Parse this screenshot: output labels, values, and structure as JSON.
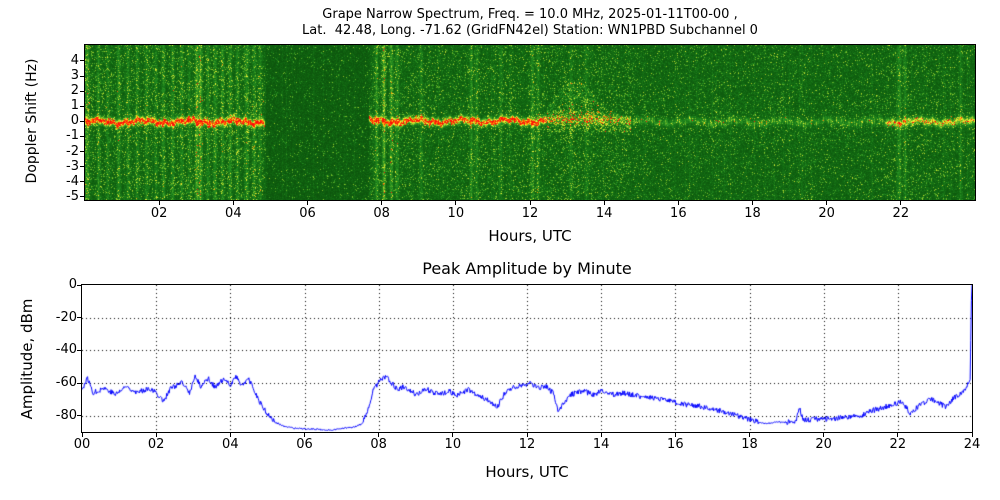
{
  "spectrogram": {
    "title_line1": "Grape Narrow Spectrum, Freq. = 10.0 MHz, 2025-01-11T00-00 ,",
    "title_line2": "Lat.  42.48, Long. -71.62 (GridFN42el) Station: WN1PBD Subchannel 0",
    "ylabel": "Doppler Shift (Hz)",
    "xlabel": "Hours, UTC",
    "ytick_labels": [
      "4",
      "3",
      "2",
      "1",
      "0",
      "-1",
      "-2",
      "-3",
      "-4",
      "-5"
    ],
    "xtick_labels": [
      "02",
      "04",
      "06",
      "08",
      "10",
      "12",
      "14",
      "16",
      "18",
      "20",
      "22"
    ]
  },
  "amplitude": {
    "title": "Peak Amplitude by Minute",
    "ylabel": "Amplitude, dBm",
    "xlabel": "Hours, UTC",
    "ytick_labels": [
      "0",
      "-20",
      "-40",
      "-60",
      "-80"
    ],
    "xtick_labels": [
      "00",
      "02",
      "04",
      "06",
      "08",
      "10",
      "12",
      "14",
      "16",
      "18",
      "20",
      "22",
      "24"
    ]
  },
  "chart_data": [
    {
      "type": "heatmap",
      "title": "Grape Narrow Spectrum, Freq. = 10.0 MHz, 2025-01-11T00-00 , Lat. 42.48, Long. -71.62 (GridFN42el) Station: WN1PBD Subchannel 0",
      "xlabel": "Hours, UTC",
      "ylabel": "Doppler Shift (Hz)",
      "xlim": [
        0,
        24
      ],
      "ylim": [
        -5.2,
        5.05
      ],
      "xticks": [
        2,
        4,
        6,
        8,
        10,
        12,
        14,
        16,
        18,
        20,
        22
      ],
      "yticks": [
        4,
        3,
        2,
        1,
        0,
        -1,
        -2,
        -3,
        -4,
        -5
      ],
      "colormap": {
        "background": "#126612",
        "low": "#2e9e2e",
        "mid": "#b8d832",
        "high": "#ffff00",
        "peak": "#ff0000"
      },
      "features": {
        "carrier_segments": [
          {
            "start": 0.0,
            "end": 4.85,
            "center": 0.0,
            "amp": 1.0,
            "red": true
          },
          {
            "start": 7.65,
            "end": 12.45,
            "center": 0.05,
            "amp": 1.0,
            "red": true
          },
          {
            "start": 14.6,
            "end": 21.6,
            "center": 0.0,
            "amp": 0.45,
            "red": false
          },
          {
            "start": 21.6,
            "end": 24.0,
            "center": 0.0,
            "amp": 0.7,
            "red": false
          }
        ],
        "quiet_gap_hours": [
          4.85,
          7.65
        ],
        "spread_event": {
          "start": 12.45,
          "end": 14.7,
          "peak_hour": 13.2,
          "max_up_hz": 2.4,
          "down_hz": 2.5
        },
        "vertical_noise_bands": [
          {
            "h": 0.05,
            "s": 0.5
          },
          {
            "h": 0.35,
            "s": 0.3
          },
          {
            "h": 0.6,
            "s": 0.25
          },
          {
            "h": 0.9,
            "s": 0.35
          },
          {
            "h": 1.15,
            "s": 0.3
          },
          {
            "h": 1.4,
            "s": 0.25
          },
          {
            "h": 1.65,
            "s": 0.3
          },
          {
            "h": 1.9,
            "s": 0.25
          },
          {
            "h": 2.1,
            "s": 0.35
          },
          {
            "h": 2.35,
            "s": 0.3
          },
          {
            "h": 2.6,
            "s": 0.3
          },
          {
            "h": 2.8,
            "s": 0.25
          },
          {
            "h": 3.0,
            "s": 0.55
          },
          {
            "h": 3.1,
            "s": 0.5
          },
          {
            "h": 3.3,
            "s": 0.3
          },
          {
            "h": 3.5,
            "s": 0.35
          },
          {
            "h": 3.7,
            "s": 0.3
          },
          {
            "h": 3.9,
            "s": 0.35
          },
          {
            "h": 4.1,
            "s": 0.3
          },
          {
            "h": 4.35,
            "s": 0.35
          },
          {
            "h": 4.55,
            "s": 0.3
          },
          {
            "h": 4.7,
            "s": 0.25
          },
          {
            "h": 7.85,
            "s": 0.4
          },
          {
            "h": 8.05,
            "s": 0.55
          },
          {
            "h": 8.25,
            "s": 0.45
          },
          {
            "h": 8.4,
            "s": 0.3
          },
          {
            "h": 9.05,
            "s": 0.25
          },
          {
            "h": 10.4,
            "s": 0.3
          },
          {
            "h": 10.55,
            "s": 0.25
          },
          {
            "h": 11.2,
            "s": 0.2
          },
          {
            "h": 12.05,
            "s": 0.35
          },
          {
            "h": 12.2,
            "s": 0.3
          },
          {
            "h": 13.1,
            "s": 0.2
          },
          {
            "h": 13.5,
            "s": 0.2
          },
          {
            "h": 21.95,
            "s": 0.35
          },
          {
            "h": 22.1,
            "s": 0.25
          },
          {
            "h": 23.6,
            "s": 0.2
          }
        ]
      }
    },
    {
      "type": "line",
      "title": "Peak Amplitude by Minute",
      "xlabel": "Hours, UTC",
      "ylabel": "Amplitude, dBm",
      "xlim": [
        0,
        24
      ],
      "ylim": [
        -90,
        0
      ],
      "xticks": [
        0,
        2,
        4,
        6,
        8,
        10,
        12,
        14,
        16,
        18,
        20,
        22,
        24
      ],
      "yticks": [
        0,
        -20,
        -40,
        -60,
        -80
      ],
      "line_color": "#0000ff",
      "grid": "dotted",
      "control_points": [
        [
          0,
          -64
        ],
        [
          0.15,
          -57
        ],
        [
          0.3,
          -66
        ],
        [
          0.6,
          -63
        ],
        [
          0.9,
          -67
        ],
        [
          1.2,
          -62
        ],
        [
          1.5,
          -66
        ],
        [
          1.8,
          -63
        ],
        [
          2.0,
          -66
        ],
        [
          2.2,
          -71
        ],
        [
          2.4,
          -63
        ],
        [
          2.7,
          -60
        ],
        [
          2.9,
          -66
        ],
        [
          3.05,
          -56
        ],
        [
          3.2,
          -62
        ],
        [
          3.4,
          -57
        ],
        [
          3.6,
          -63
        ],
        [
          3.8,
          -58
        ],
        [
          4.0,
          -61
        ],
        [
          4.15,
          -56
        ],
        [
          4.3,
          -61
        ],
        [
          4.5,
          -58
        ],
        [
          4.65,
          -65
        ],
        [
          4.8,
          -72
        ],
        [
          5.0,
          -79
        ],
        [
          5.2,
          -84
        ],
        [
          5.5,
          -87
        ],
        [
          5.8,
          -88
        ],
        [
          6.2,
          -88
        ],
        [
          6.6,
          -89
        ],
        [
          7.0,
          -88
        ],
        [
          7.3,
          -87
        ],
        [
          7.55,
          -85
        ],
        [
          7.7,
          -78
        ],
        [
          7.85,
          -65
        ],
        [
          8.0,
          -59
        ],
        [
          8.2,
          -56
        ],
        [
          8.35,
          -60
        ],
        [
          8.5,
          -64
        ],
        [
          8.7,
          -62
        ],
        [
          9.0,
          -67
        ],
        [
          9.3,
          -64
        ],
        [
          9.6,
          -67
        ],
        [
          9.9,
          -65
        ],
        [
          10.1,
          -68
        ],
        [
          10.4,
          -64
        ],
        [
          10.7,
          -68
        ],
        [
          11.0,
          -71
        ],
        [
          11.2,
          -75
        ],
        [
          11.4,
          -66
        ],
        [
          11.6,
          -63
        ],
        [
          11.9,
          -61
        ],
        [
          12.1,
          -60
        ],
        [
          12.3,
          -63
        ],
        [
          12.5,
          -62
        ],
        [
          12.7,
          -66
        ],
        [
          12.85,
          -78
        ],
        [
          13.0,
          -72
        ],
        [
          13.2,
          -67
        ],
        [
          13.5,
          -65
        ],
        [
          13.8,
          -67
        ],
        [
          14.0,
          -65
        ],
        [
          14.3,
          -67
        ],
        [
          14.6,
          -66
        ],
        [
          15.0,
          -68
        ],
        [
          15.4,
          -69
        ],
        [
          15.8,
          -71
        ],
        [
          16.2,
          -73
        ],
        [
          16.6,
          -74
        ],
        [
          17.0,
          -76
        ],
        [
          17.4,
          -78
        ],
        [
          17.8,
          -81
        ],
        [
          18.1,
          -83
        ],
        [
          18.4,
          -85
        ],
        [
          18.7,
          -84
        ],
        [
          19.0,
          -84
        ],
        [
          19.25,
          -83
        ],
        [
          19.35,
          -75
        ],
        [
          19.45,
          -83
        ],
        [
          19.8,
          -82
        ],
        [
          20.2,
          -82
        ],
        [
          20.6,
          -81
        ],
        [
          21.0,
          -80
        ],
        [
          21.3,
          -77
        ],
        [
          21.6,
          -75
        ],
        [
          21.9,
          -73
        ],
        [
          22.1,
          -71
        ],
        [
          22.35,
          -79
        ],
        [
          22.6,
          -73
        ],
        [
          22.9,
          -70
        ],
        [
          23.1,
          -72
        ],
        [
          23.3,
          -75
        ],
        [
          23.5,
          -69
        ],
        [
          23.7,
          -67
        ],
        [
          23.85,
          -63
        ],
        [
          23.95,
          -58
        ],
        [
          23.99,
          0
        ],
        [
          24,
          0
        ]
      ]
    }
  ]
}
